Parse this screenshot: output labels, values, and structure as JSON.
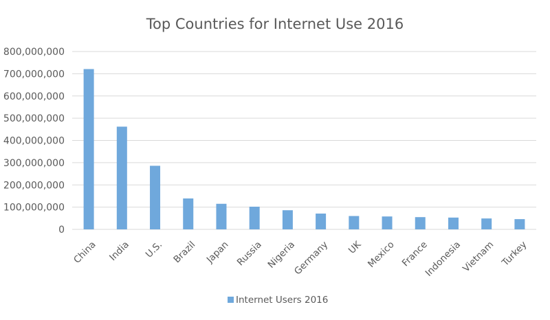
{
  "chart_data": {
    "type": "bar",
    "title": "Top Countries for Internet Use 2016",
    "xlabel": "",
    "ylabel": "",
    "categories": [
      "China",
      "India",
      "U.S.",
      "Brazil",
      "Japan",
      "Russia",
      "Nigeria",
      "Germany",
      "UK",
      "Mexico",
      "France",
      "Indonesia",
      "Vietnam",
      "Turkey"
    ],
    "series": [
      {
        "name": "Internet Users 2016",
        "color": "#6fa8dc",
        "values": [
          721000000,
          462000000,
          286000000,
          139000000,
          115000000,
          102000000,
          86000000,
          71000000,
          60000000,
          58000000,
          55000000,
          53000000,
          49000000,
          46000000
        ]
      }
    ],
    "ylim": [
      0,
      800000000
    ],
    "yticks": [
      "0",
      "100,000,000",
      "200,000,000",
      "300,000,000",
      "400,000,000",
      "500,000,000",
      "600,000,000",
      "700,000,000",
      "800,000,000"
    ],
    "grid": true,
    "legend_position": "bottom"
  }
}
